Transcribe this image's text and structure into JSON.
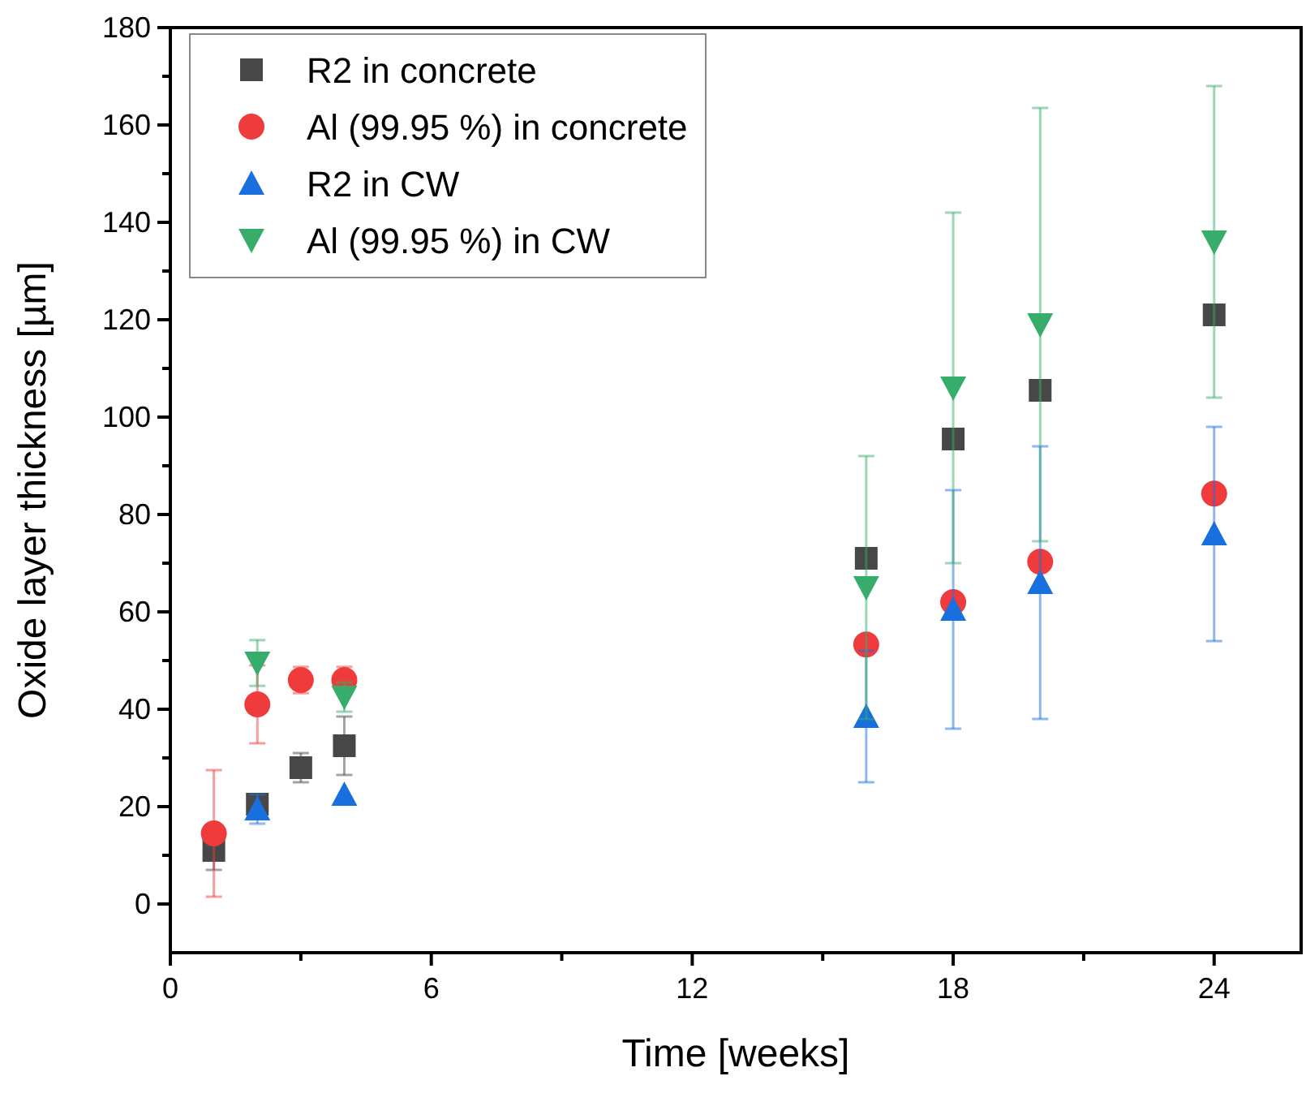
{
  "chart_data": {
    "type": "scatter",
    "xlabel": "Time [weeks]",
    "ylabel": "Oxide layer thickness [µm]",
    "xlim": [
      0,
      26
    ],
    "ylim": [
      -10,
      180
    ],
    "xticks": [
      0,
      {
        "value": 3,
        "label": null
      },
      6,
      {
        "value": 9,
        "label": null
      },
      12,
      {
        "value": 15,
        "label": null
      },
      18,
      {
        "value": 21,
        "label": null
      },
      24
    ],
    "yticks": [
      0,
      {
        "value": 10,
        "label": null
      },
      20,
      {
        "value": 30,
        "label": null
      },
      40,
      {
        "value": 50,
        "label": null
      },
      60,
      {
        "value": 70,
        "label": null
      },
      80,
      {
        "value": 90,
        "label": null
      },
      100,
      {
        "value": 110,
        "label": null
      },
      120,
      {
        "value": 130,
        "label": null
      },
      140,
      {
        "value": 150,
        "label": null
      },
      160,
      {
        "value": 170,
        "label": null
      },
      180
    ],
    "x": [
      1,
      2,
      3,
      4,
      16,
      18,
      20,
      24
    ],
    "legend": "top left",
    "grid": false,
    "series": [
      {
        "name": "R2 in concrete",
        "color": "#474747",
        "marker": "square",
        "values": [
          11,
          20.5,
          28,
          32.5,
          71,
          95.5,
          105.5,
          121
        ],
        "errors": [
          4,
          2,
          3,
          6,
          null,
          null,
          null,
          null
        ]
      },
      {
        "name": "Al (99.95 %) in concrete",
        "color": "#ef3b3b",
        "marker": "circle",
        "values": [
          14.5,
          41,
          46,
          46,
          53.3,
          62,
          70.3,
          84.3
        ],
        "errors": [
          13,
          8,
          2.7,
          2.7,
          null,
          null,
          null,
          null
        ]
      },
      {
        "name": "R2 in CW",
        "color": "#1a6fdf",
        "marker": "triangle",
        "x": [
          2,
          4,
          16,
          18,
          20,
          24
        ],
        "values": [
          19.5,
          22.5,
          38.5,
          60.5,
          66,
          76
        ],
        "errors": [
          3,
          null,
          13.5,
          24.5,
          28,
          22
        ]
      },
      {
        "name": "Al (99.95 %) in CW",
        "color": "#37ad6b",
        "marker": "triangle-down",
        "x": [
          2,
          4,
          16,
          18,
          20,
          24
        ],
        "values": [
          49.5,
          42.5,
          65,
          106,
          119,
          136
        ],
        "errors": [
          4.7,
          3,
          27,
          36,
          44.5,
          32
        ]
      }
    ]
  }
}
